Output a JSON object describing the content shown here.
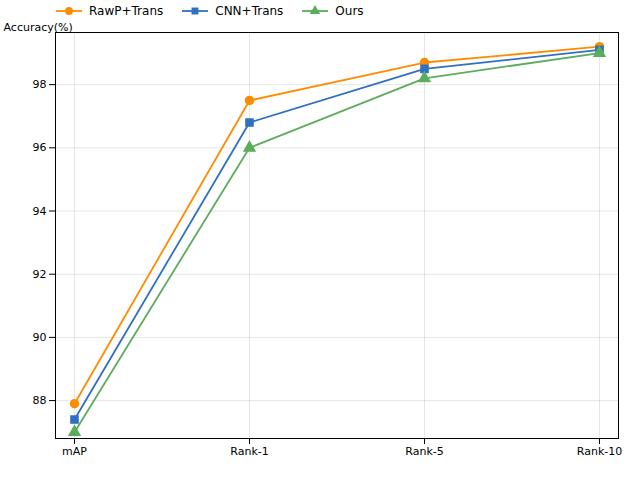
{
  "chart_data": {
    "type": "line",
    "categories": [
      "mAP",
      "Rank-1",
      "Rank-5",
      "Rank-10"
    ],
    "series": [
      {
        "name": "RawP+Trans",
        "color": "#FF8C00",
        "marker": "circle",
        "values": [
          87.9,
          97.5,
          98.7,
          99.2
        ]
      },
      {
        "name": "CNN+Trans",
        "color": "#3070C0",
        "marker": "square",
        "values": [
          87.4,
          96.8,
          98.5,
          99.1
        ]
      },
      {
        "name": "Ours",
        "color": "#5BAD5B",
        "marker": "triangle",
        "values": [
          87.0,
          96.0,
          98.2,
          99.0
        ]
      }
    ],
    "ylabel": "Accuracy(%)",
    "ylim": [
      86.8,
      99.65
    ],
    "yticks": [
      88,
      90,
      92,
      94,
      96,
      98
    ],
    "grid": true,
    "legend": "upper left"
  }
}
